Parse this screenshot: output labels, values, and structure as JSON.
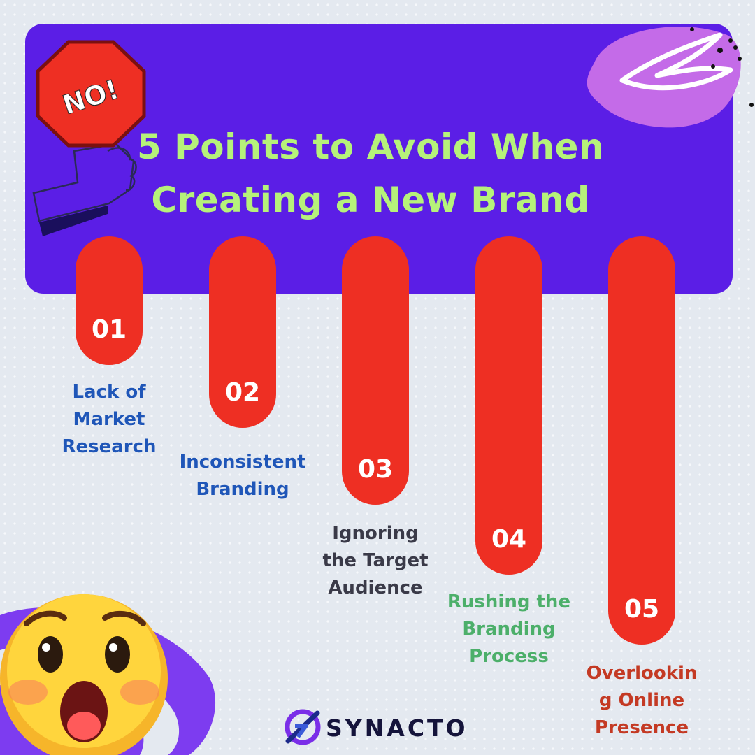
{
  "sign": {
    "text": "NO!"
  },
  "title": {
    "line1": "5 Points to Avoid When",
    "line2": "Creating a New Brand"
  },
  "points": [
    {
      "number": "01",
      "label_lines": [
        "Lack of",
        "Market",
        "Research"
      ],
      "color": "#1f56b8"
    },
    {
      "number": "02",
      "label_lines": [
        "Inconsistent",
        "Branding"
      ],
      "color": "#1f56b8"
    },
    {
      "number": "03",
      "label_lines": [
        "Ignoring",
        "the Target",
        "Audience"
      ],
      "color": "#3a3a48"
    },
    {
      "number": "04",
      "label_lines": [
        "Rushing the",
        "Branding",
        "Process"
      ],
      "color": "#4caf6a"
    },
    {
      "number": "05",
      "label_lines": [
        "Overlookin",
        "g Online",
        "Presence"
      ],
      "color": "#c43a24"
    }
  ],
  "brand": {
    "name": "SYNACTO"
  },
  "colors": {
    "banner": "#5b1ee6",
    "title": "#b6f27a",
    "bar": "#ee2f23",
    "accent_petal": "#c46be8"
  }
}
